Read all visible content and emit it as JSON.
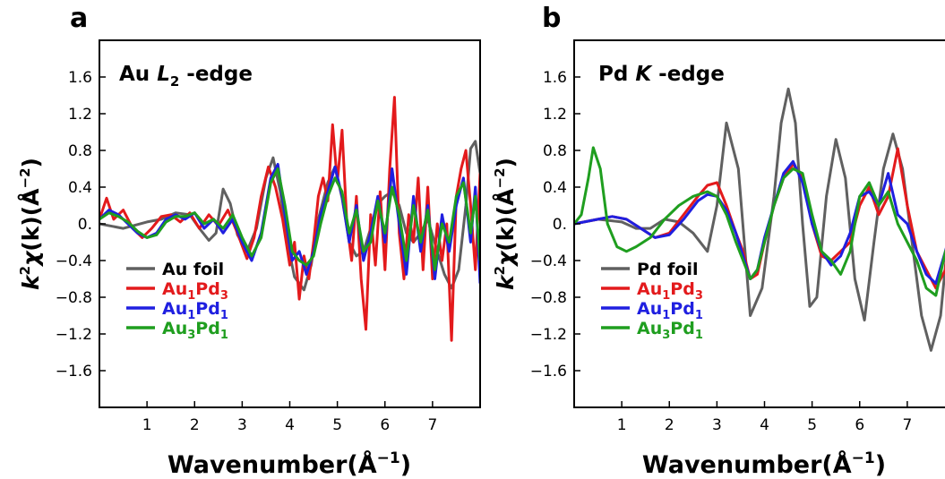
{
  "chart_data": [
    {
      "type": "line",
      "panel_label": "a",
      "title": "Au L2 -edge",
      "title_parts": {
        "element": "Au",
        "edge": "L",
        "edge_sub": "2",
        "suffix": "-edge"
      },
      "xlabel": "Wavenumber(Å−1)",
      "xlabel_parts": {
        "main": "Wavenumber(Å",
        "sup": "−1",
        "close": ")"
      },
      "ylabel": "k2χ(k)(Å−2)",
      "xlim": [
        0,
        8
      ],
      "ylim": [
        -2.0,
        2.0
      ],
      "xticks": [
        "1",
        "2",
        "3",
        "4",
        "5",
        "6",
        "7"
      ],
      "yticks": [
        "1.6",
        "1.2",
        "0.8",
        "0.4",
        "0.",
        "−0.4",
        "−0.8",
        "−1.2",
        "−1.6"
      ],
      "grid": false,
      "legend_position": "lower-left",
      "series": [
        {
          "name": "Au foil",
          "legend_parts": [
            "Au foil"
          ],
          "color": "#606060",
          "x": [
            0,
            0.5,
            1,
            1.3,
            1.6,
            1.9,
            2.1,
            2.3,
            2.45,
            2.6,
            2.75,
            2.9,
            3.1,
            3.3,
            3.5,
            3.65,
            3.8,
            3.95,
            4.1,
            4.3,
            4.45,
            4.6,
            4.8,
            4.95,
            5.1,
            5.25,
            5.4,
            5.55,
            5.7,
            5.85,
            6.0,
            6.15,
            6.3,
            6.45,
            6.6,
            6.75,
            6.9,
            7.1,
            7.25,
            7.4,
            7.55,
            7.7,
            7.8,
            7.9,
            8.0
          ],
          "y": [
            0,
            -0.05,
            0.02,
            0.05,
            0.12,
            0.1,
            -0.05,
            -0.18,
            -0.1,
            0.38,
            0.22,
            -0.12,
            -0.3,
            -0.05,
            0.5,
            0.72,
            0.35,
            -0.2,
            -0.58,
            -0.72,
            -0.45,
            0.05,
            0.45,
            0.62,
            0.28,
            -0.2,
            -0.35,
            -0.3,
            -0.05,
            0.22,
            0.3,
            0.35,
            0.2,
            -0.1,
            -0.2,
            -0.1,
            0.05,
            -0.3,
            -0.55,
            -0.7,
            -0.5,
            0.2,
            0.82,
            0.9,
            0.55
          ]
        },
        {
          "name": "Au1Pd3",
          "legend_parts": [
            "Au",
            "1",
            "Pd",
            "3"
          ],
          "color": "#e31a1c",
          "x": [
            0,
            0.15,
            0.3,
            0.5,
            0.7,
            0.9,
            1.1,
            1.3,
            1.5,
            1.7,
            1.9,
            2.1,
            2.3,
            2.5,
            2.7,
            2.9,
            3.1,
            3.25,
            3.4,
            3.55,
            3.7,
            3.85,
            4.0,
            4.1,
            4.2,
            4.3,
            4.4,
            4.5,
            4.6,
            4.7,
            4.8,
            4.9,
            5.0,
            5.1,
            5.2,
            5.3,
            5.4,
            5.5,
            5.6,
            5.7,
            5.8,
            5.9,
            6.0,
            6.1,
            6.2,
            6.3,
            6.4,
            6.5,
            6.6,
            6.7,
            6.8,
            6.9,
            7.0,
            7.1,
            7.2,
            7.3,
            7.4,
            7.5,
            7.6,
            7.7,
            7.8,
            7.9,
            8.0
          ],
          "y": [
            0.05,
            0.28,
            0.05,
            0.15,
            -0.05,
            -0.15,
            -0.05,
            0.08,
            0.1,
            0.02,
            0.12,
            -0.05,
            0.1,
            -0.02,
            0.15,
            -0.1,
            -0.38,
            -0.15,
            0.3,
            0.62,
            0.4,
            0.05,
            -0.45,
            -0.2,
            -0.82,
            -0.35,
            -0.6,
            -0.2,
            0.3,
            0.5,
            0.25,
            1.08,
            0.45,
            1.02,
            0.0,
            -0.4,
            0.3,
            -0.6,
            -1.15,
            0.1,
            -0.45,
            0.35,
            -0.5,
            0.6,
            1.38,
            -0.1,
            -0.6,
            0.1,
            -0.2,
            0.5,
            -0.5,
            0.4,
            -0.6,
            0.0,
            -0.4,
            0.0,
            -1.27,
            0.3,
            0.6,
            0.8,
            0.2,
            -0.5,
            0.55
          ]
        },
        {
          "name": "Au1Pd1",
          "legend_parts": [
            "Au",
            "1",
            "Pd",
            "1"
          ],
          "color": "#1f1fe0",
          "x": [
            0,
            0.2,
            0.4,
            0.6,
            0.8,
            1.0,
            1.2,
            1.4,
            1.6,
            1.8,
            2.0,
            2.2,
            2.4,
            2.6,
            2.8,
            3.0,
            3.2,
            3.4,
            3.6,
            3.75,
            3.9,
            4.05,
            4.2,
            4.35,
            4.5,
            4.65,
            4.8,
            4.95,
            5.1,
            5.25,
            5.4,
            5.55,
            5.7,
            5.85,
            6.0,
            6.15,
            6.3,
            6.45,
            6.6,
            6.75,
            6.9,
            7.05,
            7.2,
            7.35,
            7.5,
            7.65,
            7.8,
            7.9,
            8.0
          ],
          "y": [
            0.05,
            0.15,
            0.1,
            0.0,
            -0.1,
            -0.15,
            -0.1,
            0.05,
            0.1,
            0.05,
            0.12,
            -0.05,
            0.05,
            -0.1,
            0.05,
            -0.2,
            -0.4,
            -0.1,
            0.5,
            0.65,
            0.1,
            -0.4,
            -0.3,
            -0.55,
            -0.3,
            0.1,
            0.35,
            0.62,
            0.3,
            -0.2,
            0.2,
            -0.4,
            -0.1,
            0.3,
            -0.2,
            0.6,
            0.0,
            -0.55,
            0.3,
            -0.3,
            0.2,
            -0.6,
            0.1,
            -0.3,
            0.2,
            0.5,
            -0.2,
            0.4,
            -0.65
          ]
        },
        {
          "name": "Au3Pd1",
          "legend_parts": [
            "Au",
            "3",
            "Pd",
            "1"
          ],
          "color": "#1f9e1f",
          "x": [
            0,
            0.2,
            0.4,
            0.6,
            0.8,
            1.0,
            1.2,
            1.4,
            1.6,
            1.8,
            2.0,
            2.2,
            2.4,
            2.6,
            2.8,
            3.0,
            3.2,
            3.4,
            3.6,
            3.75,
            3.9,
            4.05,
            4.2,
            4.35,
            4.5,
            4.65,
            4.8,
            4.95,
            5.1,
            5.25,
            5.4,
            5.55,
            5.7,
            5.85,
            6.0,
            6.15,
            6.3,
            6.45,
            6.6,
            6.75,
            6.9,
            7.05,
            7.2,
            7.35,
            7.5,
            7.65,
            7.8,
            7.9,
            8.0
          ],
          "y": [
            0.05,
            0.12,
            0.08,
            0.02,
            -0.08,
            -0.15,
            -0.12,
            0.02,
            0.08,
            0.08,
            0.12,
            0.0,
            0.05,
            -0.05,
            0.1,
            -0.15,
            -0.35,
            -0.15,
            0.45,
            0.6,
            0.2,
            -0.3,
            -0.4,
            -0.45,
            -0.35,
            0.0,
            0.3,
            0.5,
            0.35,
            -0.1,
            0.15,
            -0.3,
            -0.2,
            0.25,
            -0.1,
            0.4,
            0.1,
            -0.4,
            0.2,
            -0.2,
            0.15,
            -0.5,
            0.0,
            -0.2,
            0.3,
            0.45,
            -0.1,
            0.3,
            -0.4
          ]
        }
      ]
    },
    {
      "type": "line",
      "panel_label": "b",
      "title": "Pd K -edge",
      "title_parts": {
        "element": "Pd",
        "edge": "K",
        "edge_sub": "",
        "suffix": "-edge"
      },
      "xlabel": "Wavenumber(Å−1)",
      "xlabel_parts": {
        "main": "Wavenumber(Å",
        "sup": "−1",
        "close": ")"
      },
      "ylabel": "k2χ(k)(Å−2)",
      "xlim": [
        0,
        8
      ],
      "ylim": [
        -2.0,
        2.0
      ],
      "xticks": [
        "1",
        "2",
        "3",
        "4",
        "5",
        "6",
        "7"
      ],
      "yticks": [
        "1.6",
        "1.2",
        "0.8",
        "0.4",
        "0.",
        "−0.4",
        "−0.8",
        "−1.2",
        "−1.6"
      ],
      "grid": false,
      "legend_position": "lower-left",
      "series": [
        {
          "name": "Pd foil",
          "legend_parts": [
            "Pd foil"
          ],
          "color": "#606060",
          "x": [
            0,
            0.5,
            1.0,
            1.3,
            1.6,
            1.9,
            2.2,
            2.5,
            2.8,
            3.0,
            3.2,
            3.45,
            3.7,
            3.95,
            4.2,
            4.35,
            4.5,
            4.65,
            4.8,
            4.95,
            5.1,
            5.3,
            5.5,
            5.7,
            5.9,
            6.1,
            6.3,
            6.5,
            6.7,
            6.9,
            7.1,
            7.3,
            7.5,
            7.7,
            7.85,
            8.0
          ],
          "y": [
            0,
            0.05,
            0.02,
            -0.05,
            -0.05,
            0.05,
            0.02,
            -0.1,
            -0.3,
            0.2,
            1.1,
            0.6,
            -1.0,
            -0.7,
            0.3,
            1.1,
            1.47,
            1.1,
            0.0,
            -0.9,
            -0.8,
            0.3,
            0.92,
            0.5,
            -0.6,
            -1.05,
            -0.2,
            0.6,
            0.98,
            0.6,
            -0.2,
            -1.0,
            -1.38,
            -1.0,
            -0.2,
            0.1
          ]
        },
        {
          "name": "Au1Pd3",
          "legend_parts": [
            "Au",
            "1",
            "Pd",
            "3"
          ],
          "color": "#e31a1c",
          "x": [
            0,
            0.5,
            0.8,
            1.1,
            1.4,
            1.7,
            2.0,
            2.3,
            2.6,
            2.8,
            3.0,
            3.2,
            3.4,
            3.55,
            3.7,
            3.85,
            4.0,
            4.2,
            4.4,
            4.6,
            4.8,
            5.0,
            5.2,
            5.4,
            5.6,
            5.8,
            6.0,
            6.2,
            6.4,
            6.6,
            6.8,
            7.0,
            7.2,
            7.4,
            7.6,
            7.8,
            8.0
          ],
          "y": [
            0,
            0.05,
            0.08,
            0.05,
            -0.05,
            -0.15,
            -0.1,
            0.1,
            0.3,
            0.42,
            0.45,
            0.2,
            -0.1,
            -0.3,
            -0.6,
            -0.55,
            -0.2,
            0.2,
            0.5,
            0.65,
            0.5,
            0.0,
            -0.35,
            -0.4,
            -0.3,
            -0.2,
            0.2,
            0.4,
            0.1,
            0.3,
            0.82,
            0.2,
            -0.3,
            -0.5,
            -0.7,
            -0.5,
            0.45
          ]
        },
        {
          "name": "Au1Pd1",
          "legend_parts": [
            "Au",
            "1",
            "Pd",
            "1"
          ],
          "color": "#1f1fe0",
          "x": [
            0,
            0.5,
            0.8,
            1.1,
            1.4,
            1.7,
            2.0,
            2.3,
            2.6,
            2.8,
            3.0,
            3.2,
            3.4,
            3.55,
            3.7,
            3.85,
            4.0,
            4.2,
            4.4,
            4.6,
            4.8,
            5.0,
            5.2,
            5.4,
            5.6,
            5.8,
            6.0,
            6.2,
            6.4,
            6.6,
            6.8,
            7.0,
            7.2,
            7.4,
            7.6,
            7.8,
            8.0
          ],
          "y": [
            0,
            0.05,
            0.08,
            0.05,
            -0.05,
            -0.15,
            -0.12,
            0.05,
            0.25,
            0.32,
            0.3,
            0.15,
            -0.1,
            -0.35,
            -0.6,
            -0.5,
            -0.15,
            0.2,
            0.55,
            0.68,
            0.45,
            0.0,
            -0.3,
            -0.45,
            -0.35,
            -0.1,
            0.3,
            0.35,
            0.2,
            0.55,
            0.1,
            0.0,
            -0.3,
            -0.55,
            -0.65,
            -0.3,
            0.1
          ]
        },
        {
          "name": "Au3Pd1",
          "legend_parts": [
            "Au",
            "3",
            "Pd",
            "1"
          ],
          "color": "#1f9e1f",
          "x": [
            0,
            0.15,
            0.3,
            0.4,
            0.55,
            0.7,
            0.9,
            1.1,
            1.3,
            1.6,
            1.9,
            2.2,
            2.5,
            2.8,
            3.0,
            3.2,
            3.4,
            3.55,
            3.7,
            3.85,
            4.0,
            4.2,
            4.4,
            4.6,
            4.8,
            5.0,
            5.2,
            5.4,
            5.6,
            5.8,
            6.0,
            6.2,
            6.4,
            6.6,
            6.8,
            7.0,
            7.2,
            7.4,
            7.6,
            7.8,
            8.0
          ],
          "y": [
            0,
            0.1,
            0.5,
            0.83,
            0.6,
            0.0,
            -0.25,
            -0.3,
            -0.25,
            -0.15,
            0.05,
            0.2,
            0.3,
            0.35,
            0.3,
            0.1,
            -0.2,
            -0.4,
            -0.6,
            -0.5,
            -0.2,
            0.2,
            0.5,
            0.6,
            0.55,
            0.1,
            -0.3,
            -0.4,
            -0.55,
            -0.3,
            0.3,
            0.45,
            0.2,
            0.35,
            0.0,
            -0.2,
            -0.4,
            -0.7,
            -0.78,
            -0.3,
            -0.1
          ]
        }
      ]
    }
  ]
}
